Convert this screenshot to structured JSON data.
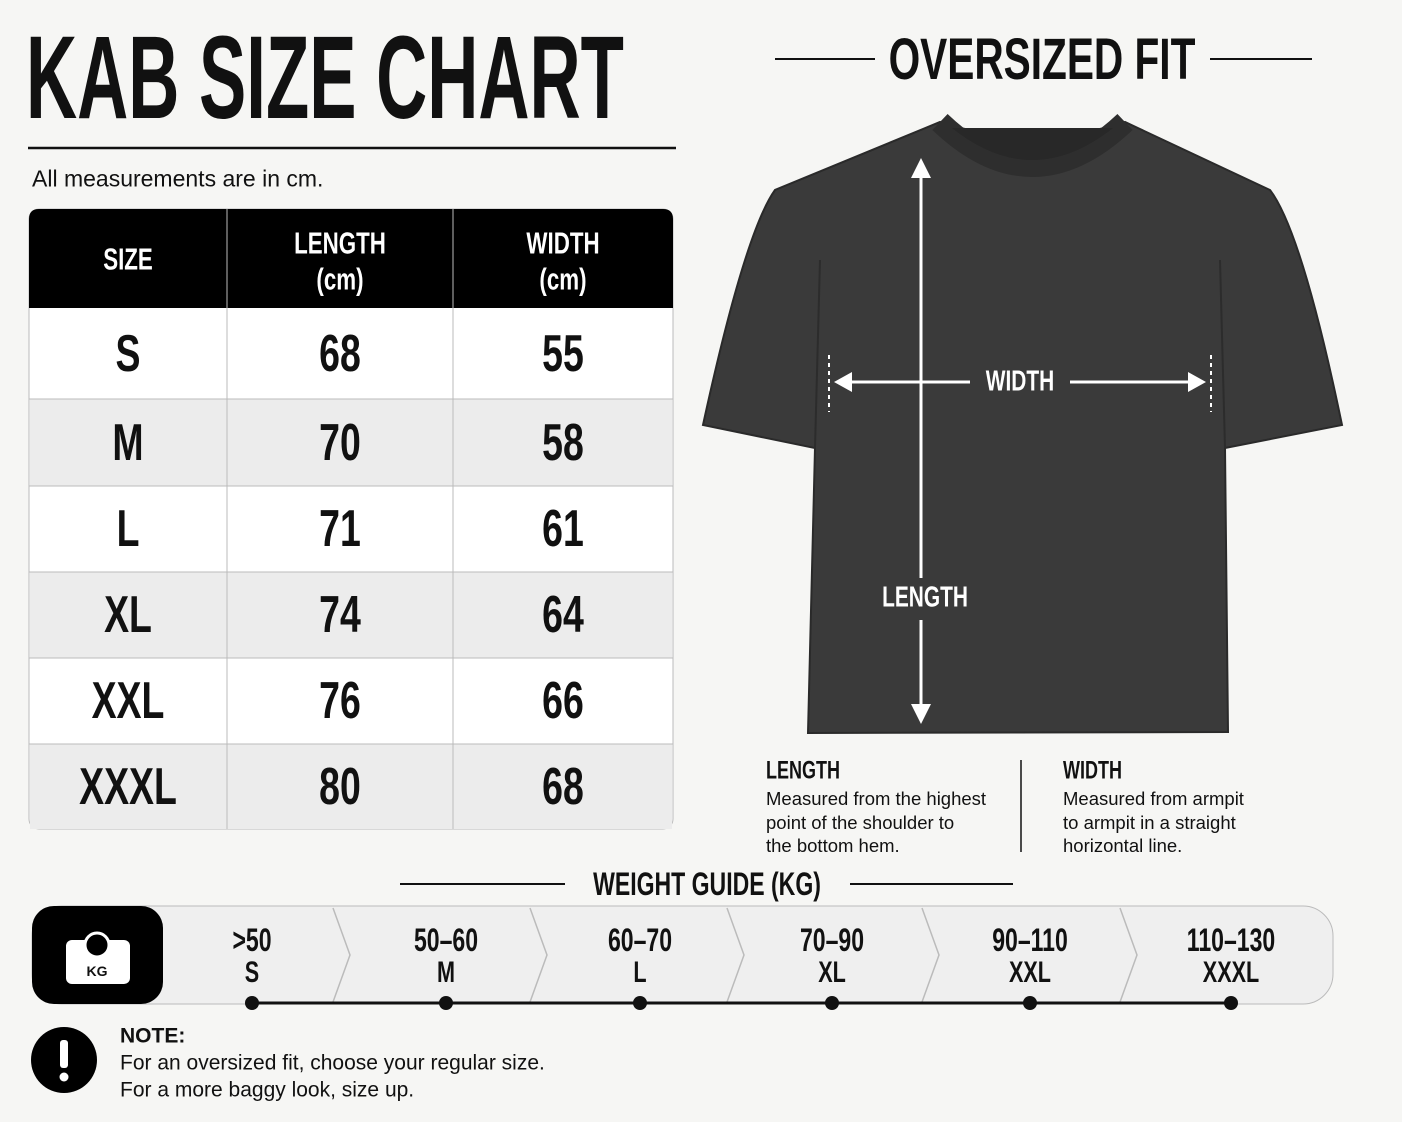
{
  "title": "KAB SIZE CHART",
  "subtitle": "All measurements are in cm.",
  "table": {
    "header": [
      [
        "SIZE"
      ],
      [
        "LENGTH",
        "(cm)"
      ],
      [
        "WIDTH",
        "(cm)"
      ]
    ],
    "rows": [
      [
        "S",
        68,
        55
      ],
      [
        "M",
        70,
        58
      ],
      [
        "L",
        71,
        61
      ],
      [
        "XL",
        74,
        64
      ],
      [
        "XXL",
        76,
        66
      ],
      [
        "XXXL",
        80,
        68
      ]
    ]
  },
  "fit": {
    "title": "OVERSIZED FIT",
    "width_label": "WIDTH",
    "length_label": "LENGTH"
  },
  "definitions": [
    {
      "title": "LENGTH",
      "lines": [
        "Measured from the highest",
        "point of the shoulder to",
        "the bottom hem."
      ]
    },
    {
      "title": "WIDTH",
      "lines": [
        "Measured from armpit",
        "to armpit in a straight",
        "horizontal line."
      ]
    }
  ],
  "weight_guide": {
    "title": "WEIGHT GUIDE (KG)",
    "icon_label": "KG",
    "steps": [
      {
        "range": ">50",
        "size": "S"
      },
      {
        "range": "50–60",
        "size": "M"
      },
      {
        "range": "60–70",
        "size": "L"
      },
      {
        "range": "70–90",
        "size": "XL"
      },
      {
        "range": "90–110",
        "size": "XXL"
      },
      {
        "range": "110–130",
        "size": "XXXL"
      }
    ]
  },
  "note": {
    "title": "NOTE:",
    "lines": [
      "For an oversized fit, choose your regular size.",
      "For a more baggy look, size up."
    ]
  }
}
